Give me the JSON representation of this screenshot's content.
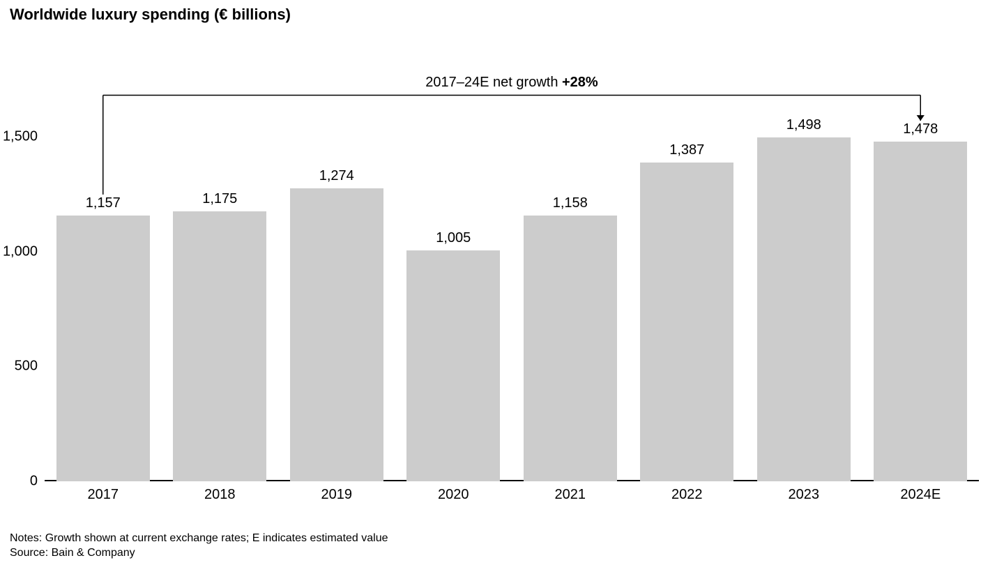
{
  "chart": {
    "type": "bar",
    "title": "Worldwide luxury spending (€ billions)",
    "title_fontsize": 22,
    "title_fontweight": 700,
    "categories": [
      "2017",
      "2018",
      "2019",
      "2020",
      "2021",
      "2022",
      "2023",
      "2024E"
    ],
    "values": [
      1157,
      1175,
      1274,
      1005,
      1158,
      1387,
      1498,
      1478
    ],
    "value_labels": [
      "1,157",
      "1,175",
      "1,274",
      "1,005",
      "1,158",
      "1,387",
      "1,498",
      "1,478"
    ],
    "bar_color": "#cccccc",
    "background_color": "#ffffff",
    "text_color": "#000000",
    "axis_color": "#000000",
    "y": {
      "min": 0,
      "max": 1700,
      "ticks": [
        0,
        500,
        1000,
        1500
      ],
      "tick_labels": [
        "0",
        "500",
        "1,000",
        "1,500"
      ]
    },
    "label_fontsize": 20,
    "bar_width_ratio": 0.8,
    "annotation": {
      "text_prefix": "2017–24E net growth ",
      "text_bold": "+28%",
      "from_index": 0,
      "to_index": 7,
      "line_color": "#000000"
    }
  },
  "footer": {
    "notes": "Notes: Growth shown at current exchange rates; E indicates estimated value",
    "source": "Source: Bain & Company",
    "fontsize": 16
  }
}
